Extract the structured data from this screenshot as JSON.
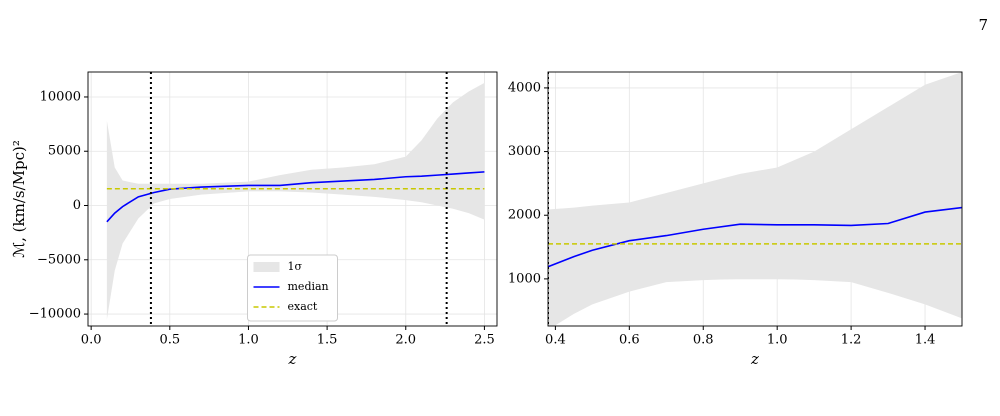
{
  "page_number": "7",
  "chart_data": [
    {
      "type": "line",
      "xlabel": "z",
      "ylabel": "ℳ, (km/s/Mpc)²",
      "xlim": [
        -0.02,
        2.58
      ],
      "ylim": [
        -11100,
        12300
      ],
      "xticks": [
        {
          "value": 0,
          "label": "0.0"
        },
        0.5,
        {
          "value": 1,
          "label": "1.0"
        },
        1.5,
        {
          "value": 2,
          "label": "2.0"
        },
        2.5
      ],
      "yticks": [
        {
          "value": -10000,
          "label": "−10000"
        },
        {
          "value": -5000,
          "label": "−5000"
        },
        0,
        5000,
        10000
      ],
      "grid": true,
      "legend": "lower center",
      "x": [
        0.1,
        0.15,
        0.2,
        0.3,
        0.4,
        0.5,
        0.7,
        1.0,
        1.2,
        1.4,
        1.6,
        1.8,
        2.0,
        2.1,
        2.2,
        2.3,
        2.4,
        2.5
      ],
      "series": [
        {
          "name": "1σ",
          "color": "#e6e6e6",
          "upper": [
            7800,
            3500,
            2300,
            2000,
            2000,
            2000,
            2000,
            2200,
            2800,
            3300,
            3500,
            3800,
            4500,
            6000,
            8000,
            9500,
            10500,
            11300
          ],
          "lower": [
            -10500,
            -6000,
            -3500,
            -1200,
            200,
            600,
            1000,
            1300,
            1300,
            1200,
            1000,
            800,
            500,
            300,
            0,
            -300,
            -700,
            -1300
          ]
        },
        {
          "name": "median",
          "color": "#0000ff",
          "values": [
            -1500,
            -700,
            -100,
            800,
            1200,
            1500,
            1700,
            1850,
            1850,
            2100,
            2250,
            2400,
            2650,
            2700,
            2800,
            2900,
            3000,
            3100
          ]
        },
        {
          "name": "exact",
          "color": "#c8c800",
          "value": 1550
        }
      ],
      "vlines": [
        0.38,
        2.26
      ]
    },
    {
      "type": "line",
      "xlabel": "z",
      "xlim": [
        0.38,
        1.5
      ],
      "ylim": [
        260,
        4250
      ],
      "xticks": [
        0.4,
        0.6,
        0.8,
        {
          "value": 1,
          "label": "1.0"
        },
        1.2,
        1.4
      ],
      "yticks": [
        1000,
        2000,
        3000,
        4000
      ],
      "grid": true,
      "x": [
        0.38,
        0.45,
        0.5,
        0.6,
        0.7,
        0.8,
        0.9,
        1.0,
        1.1,
        1.2,
        1.3,
        1.4,
        1.5
      ],
      "series": [
        {
          "color": "#e6e6e6",
          "upper": [
            2090,
            2120,
            2150,
            2200,
            2350,
            2500,
            2650,
            2750,
            3000,
            3350,
            3700,
            4050,
            4250
          ],
          "lower": [
            200,
            450,
            600,
            800,
            950,
            980,
            1000,
            1000,
            980,
            950,
            780,
            600,
            380
          ]
        },
        {
          "color": "#0000ff",
          "values": [
            1190,
            1350,
            1450,
            1600,
            1680,
            1780,
            1860,
            1850,
            1850,
            1840,
            1870,
            2050,
            2120
          ]
        },
        {
          "color": "#c8c800",
          "value": 1550
        }
      ],
      "vlines": [
        0.38
      ]
    }
  ]
}
